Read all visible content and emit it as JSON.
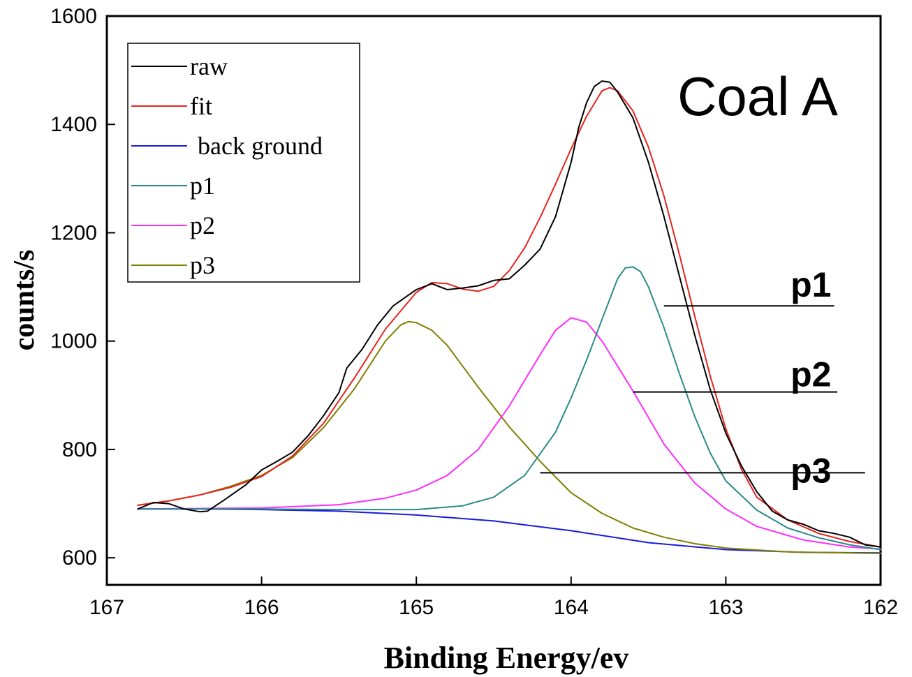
{
  "chart_data": {
    "type": "line",
    "title": "Coal A",
    "xlabel": "Binding Energy/ev",
    "ylabel": "counts/s",
    "xlim": [
      167,
      162
    ],
    "ylim": [
      550,
      1600
    ],
    "x_reversed": true,
    "x_ticks": [
      167,
      166,
      165,
      164,
      163,
      162
    ],
    "y_ticks": [
      600,
      800,
      1000,
      1200,
      1400,
      1600
    ],
    "grid": false,
    "legend_position": "top-left",
    "series": [
      {
        "name": "raw",
        "color": "#000000",
        "points": [
          [
            166.8,
            690
          ],
          [
            166.7,
            702
          ],
          [
            166.6,
            700
          ],
          [
            166.5,
            690
          ],
          [
            166.4,
            685
          ],
          [
            166.35,
            686
          ],
          [
            166.25,
            705
          ],
          [
            166.1,
            735
          ],
          [
            166.0,
            762
          ],
          [
            165.9,
            778
          ],
          [
            165.8,
            795
          ],
          [
            165.7,
            825
          ],
          [
            165.6,
            862
          ],
          [
            165.5,
            905
          ],
          [
            165.45,
            950
          ],
          [
            165.35,
            985
          ],
          [
            165.25,
            1030
          ],
          [
            165.15,
            1065
          ],
          [
            165.05,
            1085
          ],
          [
            165.0,
            1095
          ],
          [
            164.9,
            1106
          ],
          [
            164.8,
            1095
          ],
          [
            164.7,
            1098
          ],
          [
            164.6,
            1102
          ],
          [
            164.5,
            1112
          ],
          [
            164.4,
            1115
          ],
          [
            164.3,
            1140
          ],
          [
            164.2,
            1170
          ],
          [
            164.1,
            1230
          ],
          [
            164.0,
            1330
          ],
          [
            163.95,
            1395
          ],
          [
            163.9,
            1440
          ],
          [
            163.85,
            1470
          ],
          [
            163.8,
            1480
          ],
          [
            163.75,
            1478
          ],
          [
            163.7,
            1460
          ],
          [
            163.6,
            1412
          ],
          [
            163.5,
            1330
          ],
          [
            163.4,
            1230
          ],
          [
            163.3,
            1120
          ],
          [
            163.2,
            1010
          ],
          [
            163.1,
            910
          ],
          [
            163.0,
            830
          ],
          [
            162.9,
            770
          ],
          [
            162.8,
            722
          ],
          [
            162.7,
            686
          ],
          [
            162.6,
            670
          ],
          [
            162.5,
            662
          ],
          [
            162.4,
            650
          ],
          [
            162.3,
            645
          ],
          [
            162.2,
            638
          ],
          [
            162.1,
            624
          ],
          [
            162.0,
            620
          ]
        ]
      },
      {
        "name": "fit",
        "color": "#e8231e",
        "points": [
          [
            166.8,
            697
          ],
          [
            166.6,
            705
          ],
          [
            166.4,
            716
          ],
          [
            166.2,
            730
          ],
          [
            166.0,
            750
          ],
          [
            165.8,
            788
          ],
          [
            165.6,
            848
          ],
          [
            165.4,
            932
          ],
          [
            165.2,
            1022
          ],
          [
            165.0,
            1090
          ],
          [
            164.9,
            1108
          ],
          [
            164.8,
            1106
          ],
          [
            164.7,
            1096
          ],
          [
            164.6,
            1092
          ],
          [
            164.5,
            1101
          ],
          [
            164.4,
            1130
          ],
          [
            164.3,
            1172
          ],
          [
            164.2,
            1228
          ],
          [
            164.1,
            1290
          ],
          [
            164.0,
            1355
          ],
          [
            163.9,
            1415
          ],
          [
            163.8,
            1462
          ],
          [
            163.75,
            1468
          ],
          [
            163.7,
            1462
          ],
          [
            163.6,
            1425
          ],
          [
            163.5,
            1358
          ],
          [
            163.4,
            1268
          ],
          [
            163.3,
            1160
          ],
          [
            163.2,
            1045
          ],
          [
            163.1,
            935
          ],
          [
            163.0,
            838
          ],
          [
            162.9,
            764
          ],
          [
            162.8,
            712
          ],
          [
            162.6,
            670
          ],
          [
            162.4,
            645
          ],
          [
            162.2,
            630
          ],
          [
            162.0,
            620
          ]
        ]
      },
      {
        "name": "back ground",
        "color": "#1a1adc",
        "points": [
          [
            166.8,
            690
          ],
          [
            166.4,
            690
          ],
          [
            166.0,
            689
          ],
          [
            165.5,
            686
          ],
          [
            165.0,
            679
          ],
          [
            164.5,
            668
          ],
          [
            164.0,
            650
          ],
          [
            163.5,
            628
          ],
          [
            163.0,
            615
          ],
          [
            162.5,
            610
          ],
          [
            162.0,
            609
          ]
        ]
      },
      {
        "name": "p1",
        "color": "#2a8a8a",
        "points": [
          [
            166.8,
            690
          ],
          [
            166.0,
            690
          ],
          [
            165.5,
            689
          ],
          [
            165.0,
            689
          ],
          [
            164.7,
            696
          ],
          [
            164.5,
            712
          ],
          [
            164.3,
            752
          ],
          [
            164.1,
            832
          ],
          [
            164.0,
            895
          ],
          [
            163.9,
            965
          ],
          [
            163.8,
            1040
          ],
          [
            163.7,
            1115
          ],
          [
            163.65,
            1135
          ],
          [
            163.6,
            1137
          ],
          [
            163.55,
            1128
          ],
          [
            163.5,
            1100
          ],
          [
            163.4,
            1025
          ],
          [
            163.3,
            940
          ],
          [
            163.2,
            860
          ],
          [
            163.1,
            793
          ],
          [
            163.0,
            742
          ],
          [
            162.8,
            688
          ],
          [
            162.6,
            655
          ],
          [
            162.4,
            637
          ],
          [
            162.2,
            624
          ],
          [
            162.0,
            615
          ]
        ]
      },
      {
        "name": "p2",
        "color": "#ff2cff",
        "points": [
          [
            166.8,
            690
          ],
          [
            166.0,
            692
          ],
          [
            165.5,
            698
          ],
          [
            165.2,
            710
          ],
          [
            165.0,
            725
          ],
          [
            164.8,
            752
          ],
          [
            164.6,
            800
          ],
          [
            164.4,
            880
          ],
          [
            164.2,
            975
          ],
          [
            164.1,
            1020
          ],
          [
            164.0,
            1043
          ],
          [
            163.9,
            1035
          ],
          [
            163.8,
            1000
          ],
          [
            163.6,
            908
          ],
          [
            163.4,
            810
          ],
          [
            163.2,
            738
          ],
          [
            163.0,
            690
          ],
          [
            162.8,
            658
          ],
          [
            162.5,
            633
          ],
          [
            162.2,
            620
          ],
          [
            162.0,
            616
          ]
        ]
      },
      {
        "name": "p3",
        "color": "#808000",
        "points": [
          [
            166.8,
            697
          ],
          [
            166.6,
            705
          ],
          [
            166.4,
            716
          ],
          [
            166.2,
            732
          ],
          [
            166.0,
            752
          ],
          [
            165.8,
            785
          ],
          [
            165.6,
            840
          ],
          [
            165.4,
            912
          ],
          [
            165.2,
            1000
          ],
          [
            165.1,
            1030
          ],
          [
            165.05,
            1036
          ],
          [
            165.0,
            1034
          ],
          [
            164.9,
            1020
          ],
          [
            164.8,
            992
          ],
          [
            164.6,
            915
          ],
          [
            164.4,
            842
          ],
          [
            164.2,
            778
          ],
          [
            164.0,
            720
          ],
          [
            163.8,
            682
          ],
          [
            163.6,
            655
          ],
          [
            163.4,
            638
          ],
          [
            163.2,
            626
          ],
          [
            163.0,
            618
          ],
          [
            162.6,
            611
          ],
          [
            162.0,
            608
          ]
        ]
      }
    ],
    "annotations": [
      {
        "label": "p1",
        "line_x": [
          163.4,
          162.3
        ],
        "line_y": 1065,
        "label_x": 162.45,
        "label_y": 1105
      },
      {
        "label": "p2",
        "line_x": [
          163.6,
          162.28
        ],
        "line_y": 906,
        "label_x": 162.45,
        "label_y": 940
      },
      {
        "label": "p3",
        "line_x": [
          164.2,
          162.1
        ],
        "line_y": 757,
        "label_x": 162.45,
        "label_y": 762
      }
    ]
  }
}
